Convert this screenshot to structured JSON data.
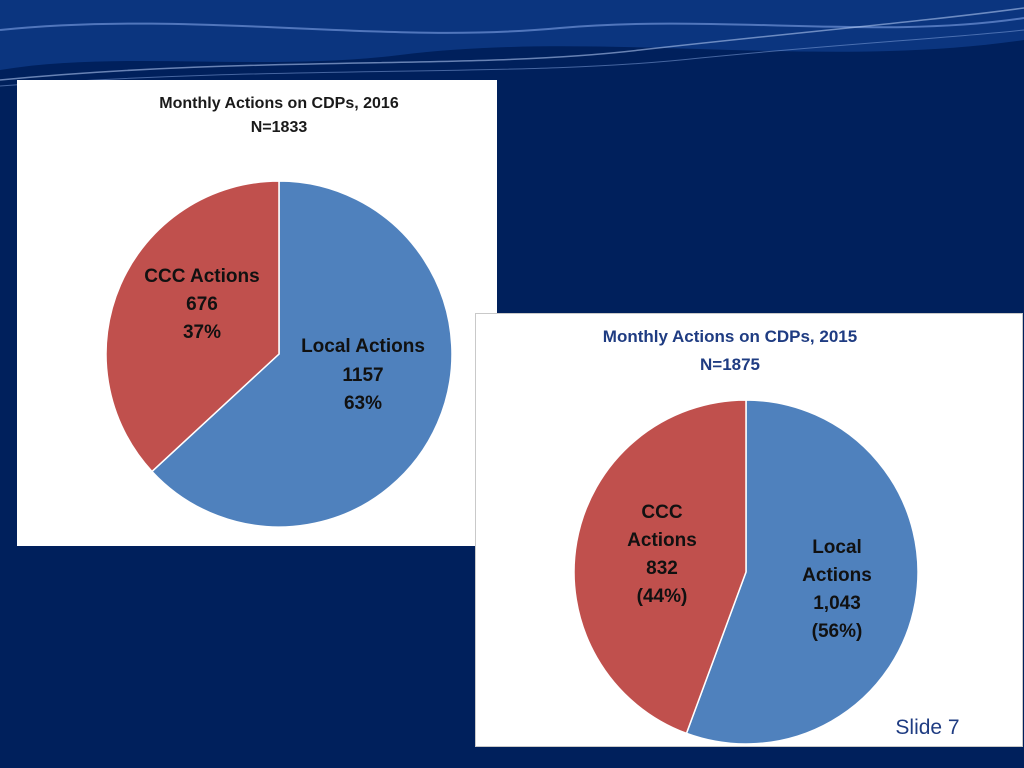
{
  "slide": {
    "number_label": "Slide 7",
    "background_color": "#00205c"
  },
  "chart_data": [
    {
      "type": "pie",
      "title": "Monthly Actions on CDPs, 2016",
      "subtitle": "N=1833",
      "slices": [
        {
          "label": "Local Actions",
          "value": 1157,
          "value_text": "1157",
          "percent_text": "63%",
          "color": "#4f81bd"
        },
        {
          "label": "CCC Actions",
          "value": 676,
          "value_text": "676",
          "percent_text": "37%",
          "color": "#c0504d"
        }
      ]
    },
    {
      "type": "pie",
      "title": "Monthly Actions on CDPs, 2015",
      "subtitle": "N=1875",
      "slices": [
        {
          "label": "Local Actions",
          "label_lines": [
            "Local",
            "Actions"
          ],
          "value": 1043,
          "value_text": "1,043",
          "percent_text": "(56%)",
          "color": "#4f81bd"
        },
        {
          "label": "CCC Actions",
          "label_lines": [
            "CCC",
            "Actions"
          ],
          "value": 832,
          "value_text": "832",
          "percent_text": "(44%)",
          "color": "#c0504d"
        }
      ]
    }
  ]
}
